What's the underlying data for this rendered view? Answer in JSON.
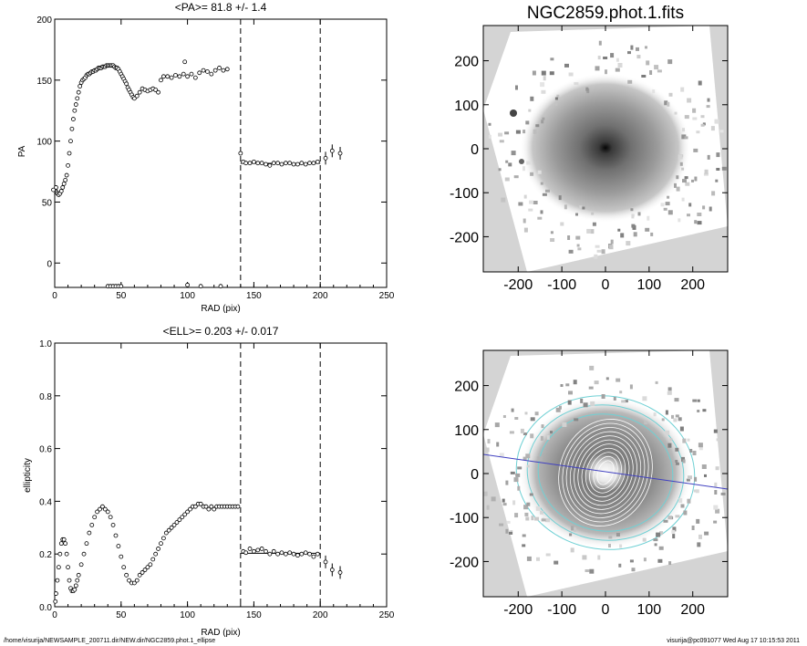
{
  "footer": {
    "path": "/home/visurija/NEWSAMPLE_200711.dir/NEW.dir/NGC2859.phot.1_ellipse",
    "user_time": "visurija@pc091077  Wed Aug 17 10:15:53 2011"
  },
  "colors": {
    "contour": "#6fd0d4",
    "pa_line": "#4040c0",
    "bg_gray": "#d4d4d4"
  },
  "chart_data": [
    {
      "type": "scatter",
      "title": "<PA>=  81.8 +/-   1.4",
      "xlabel": "RAD (pix)",
      "ylabel": "PA",
      "xlim": [
        0,
        250
      ],
      "ylim": [
        -20,
        200
      ],
      "xticks": [
        0,
        50,
        100,
        150,
        200,
        250
      ],
      "yticks": [
        0,
        50,
        100,
        150,
        200
      ],
      "vlines": [
        140,
        200
      ],
      "mean": {
        "value": 81.8,
        "x_range": [
          140,
          200
        ]
      },
      "series": [
        {
          "x": [
            0.5,
            1,
            1.5,
            2,
            3,
            4,
            5,
            6,
            7,
            8,
            9,
            10,
            11,
            12,
            13,
            14,
            15,
            16,
            17,
            18,
            19,
            20,
            21,
            22,
            23,
            24,
            25,
            26,
            27,
            28,
            29,
            30,
            31,
            32,
            33,
            34,
            35,
            36,
            37,
            38,
            39,
            40,
            41,
            42,
            43,
            44,
            45,
            46,
            47,
            48,
            49,
            50,
            51,
            52,
            53,
            54,
            55,
            56,
            57,
            58,
            59,
            60,
            62,
            64,
            66,
            68,
            70,
            72,
            74,
            76,
            78,
            80,
            82,
            85,
            88,
            91,
            94,
            97,
            100,
            103,
            106,
            109,
            112,
            115,
            118,
            121,
            124,
            127,
            130
          ],
          "y": [
            60,
            62,
            58,
            57,
            56,
            57,
            59,
            62,
            65,
            68,
            72,
            80,
            90,
            100,
            110,
            118,
            125,
            130,
            135,
            140,
            145,
            148,
            150,
            151,
            152,
            154,
            155,
            155,
            156,
            157,
            157,
            158,
            158,
            159,
            160,
            160,
            160,
            161,
            161,
            161,
            162,
            162,
            162,
            162,
            162,
            162,
            161,
            160,
            160,
            159,
            157,
            155,
            153,
            151,
            149,
            147,
            144,
            142,
            140,
            138,
            136,
            135,
            137,
            140,
            143,
            142,
            141,
            142,
            143,
            142,
            140,
            150,
            153,
            153,
            152,
            154,
            153,
            155,
            153,
            155,
            152,
            156,
            158,
            157,
            155,
            158,
            160,
            158,
            159
          ]
        },
        {
          "x": [
            -1,
            140
          ],
          "y": [
            60,
            90
          ]
        },
        {
          "x": [
            142,
            144,
            147,
            150,
            153,
            156,
            159,
            162,
            165,
            168,
            171,
            174,
            177,
            180,
            183,
            186,
            189,
            192,
            195,
            198
          ],
          "y": [
            83,
            82,
            82,
            83,
            82,
            82,
            81,
            80,
            82,
            82,
            81,
            82,
            82,
            81,
            81,
            82,
            81,
            82,
            82,
            83
          ]
        },
        {
          "x": [
            204,
            209,
            215
          ],
          "y": [
            86,
            92,
            90
          ]
        },
        {
          "x": [
            40,
            42,
            44,
            46,
            48,
            50,
            100,
            110,
            125
          ],
          "y": [
            -19,
            -19,
            -19,
            -19,
            -19,
            -19,
            -18,
            -19,
            -19
          ]
        },
        {
          "x": [
            98
          ],
          "y": [
            165
          ]
        }
      ]
    },
    {
      "type": "scatter",
      "title": "<ELL>= 0.203 +/-  0.017",
      "xlabel": "RAD (pix)",
      "ylabel": "ellipticity",
      "xlim": [
        0,
        250
      ],
      "ylim": [
        0,
        1
      ],
      "xticks": [
        0,
        50,
        100,
        150,
        200,
        250
      ],
      "yticks": [
        0.0,
        0.2,
        0.4,
        0.6,
        0.8,
        1.0
      ],
      "vlines": [
        140,
        200
      ],
      "mean": {
        "value": 0.203,
        "x_range": [
          140,
          200
        ]
      },
      "series": [
        {
          "x": [
            0.5,
            1,
            2,
            3,
            4,
            5,
            6,
            7,
            8,
            9,
            10,
            11,
            12,
            13,
            14,
            15,
            16,
            17,
            18,
            20,
            22,
            24,
            26,
            28,
            30,
            32,
            34,
            36,
            38,
            40,
            42,
            44,
            46,
            48,
            50,
            52,
            54,
            56,
            58,
            60,
            62,
            64,
            66,
            68,
            70,
            72,
            74,
            76,
            78,
            80,
            82,
            84,
            86,
            88,
            90,
            92,
            94,
            96,
            98,
            100,
            102,
            104,
            106,
            108,
            110,
            112,
            114,
            116,
            118,
            120,
            122,
            124,
            126,
            128,
            130,
            132,
            134,
            136,
            138
          ],
          "y": [
            0.02,
            0.05,
            0.1,
            0.15,
            0.2,
            0.24,
            0.255,
            0.255,
            0.24,
            0.2,
            0.15,
            0.1,
            0.07,
            0.06,
            0.06,
            0.065,
            0.08,
            0.1,
            0.12,
            0.16,
            0.2,
            0.24,
            0.28,
            0.31,
            0.34,
            0.36,
            0.37,
            0.38,
            0.37,
            0.36,
            0.34,
            0.31,
            0.27,
            0.23,
            0.19,
            0.15,
            0.12,
            0.1,
            0.09,
            0.09,
            0.1,
            0.12,
            0.13,
            0.14,
            0.15,
            0.16,
            0.18,
            0.2,
            0.22,
            0.24,
            0.26,
            0.28,
            0.29,
            0.3,
            0.31,
            0.32,
            0.33,
            0.34,
            0.35,
            0.36,
            0.37,
            0.38,
            0.38,
            0.39,
            0.39,
            0.38,
            0.38,
            0.37,
            0.38,
            0.37,
            0.38,
            0.38,
            0.38,
            0.38,
            0.38,
            0.38,
            0.38,
            0.38,
            0.38
          ]
        },
        {
          "x": [
            142,
            144,
            147,
            150,
            153,
            156,
            159,
            162,
            165,
            168,
            171,
            174,
            177,
            180,
            183,
            186,
            189,
            192,
            195,
            198
          ],
          "y": [
            0.21,
            0.205,
            0.22,
            0.21,
            0.215,
            0.22,
            0.21,
            0.2,
            0.21,
            0.2,
            0.205,
            0.2,
            0.205,
            0.2,
            0.195,
            0.2,
            0.205,
            0.2,
            0.19,
            0.2
          ]
        },
        {
          "x": [
            204,
            209,
            215
          ],
          "y": [
            0.17,
            0.14,
            0.13
          ]
        }
      ]
    },
    {
      "type": "heatmap",
      "title": "NGC2859.phot.1.fits",
      "xlim": [
        -280,
        280
      ],
      "ylim": [
        -280,
        280
      ],
      "xticks": [
        -200,
        -100,
        0,
        100,
        200
      ],
      "yticks": [
        -200,
        -100,
        0,
        100,
        200
      ]
    },
    {
      "type": "heatmap",
      "title": "",
      "xlim": [
        -280,
        280
      ],
      "ylim": [
        -280,
        280
      ],
      "xticks": [
        -200,
        -100,
        0,
        100,
        200
      ],
      "yticks": [
        -200,
        -100,
        0,
        100,
        200
      ],
      "pa_line": {
        "pa_deg": 81.8
      }
    }
  ]
}
